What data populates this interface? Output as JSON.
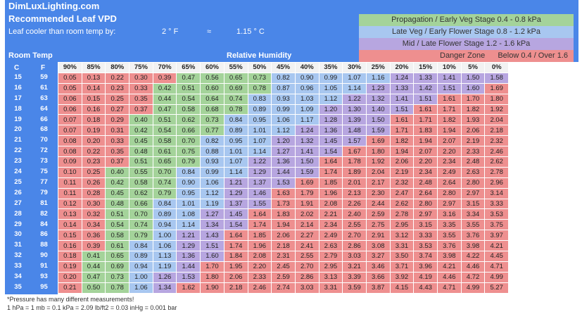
{
  "header": {
    "brand": "DimLuxLighting.com",
    "title": "Recommended Leaf VPD",
    "cooler_label": "Leaf cooler than room temp by:",
    "cooler_f": "2 ° F",
    "approx": "≈",
    "cooler_c": "1.15 ° C",
    "room_temp_label": "Room Temp",
    "rh_label": "Relative Humidity",
    "unit_c": "C",
    "unit_f": "F"
  },
  "legend": {
    "propagation": "Propagation / Early Veg Stage 0.4 - 0.8 kPa",
    "late_veg": "Late Veg / Early Flower Stage 0.8 - 1.2 kPa",
    "mid_late": "Mid / Late Flower Stage 1.2 - 1.6 kPa",
    "danger": "Danger Zone",
    "danger_range": "Below 0.4 / Over 1.6"
  },
  "colors": {
    "header": "#4a86e8",
    "red": "#ee8f8f",
    "green": "#a4d39a",
    "blue": "#a8c7f0",
    "purple": "#b7a6e0"
  },
  "humidity": [
    "90%",
    "85%",
    "80%",
    "75%",
    "70%",
    "65%",
    "60%",
    "55%",
    "50%",
    "45%",
    "40%",
    "35%",
    "30%",
    "25%",
    "20%",
    "15%",
    "10%",
    "5%",
    "0%"
  ],
  "temps": [
    {
      "c": "15",
      "f": "59",
      "v": [
        "0.05",
        "0.13",
        "0.22",
        "0.30",
        "0.39",
        "0.47",
        "0.56",
        "0.65",
        "0.73",
        "0.82",
        "0.90",
        "0.99",
        "1.07",
        "1.16",
        "1.24",
        "1.33",
        "1.41",
        "1.50",
        "1.58"
      ]
    },
    {
      "c": "16",
      "f": "61",
      "v": [
        "0.05",
        "0.14",
        "0.23",
        "0.33",
        "0.42",
        "0.51",
        "0.60",
        "0.69",
        "0.78",
        "0.87",
        "0.96",
        "1.05",
        "1.14",
        "1.23",
        "1.33",
        "1.42",
        "1.51",
        "1.60",
        "1.69"
      ]
    },
    {
      "c": "17",
      "f": "63",
      "v": [
        "0.06",
        "0.15",
        "0.25",
        "0.35",
        "0.44",
        "0.54",
        "0.64",
        "0.74",
        "0.83",
        "0.93",
        "1.03",
        "1.12",
        "1.22",
        "1.32",
        "1.41",
        "1.51",
        "1.61",
        "1.70",
        "1.80"
      ]
    },
    {
      "c": "18",
      "f": "64",
      "v": [
        "0.06",
        "0.16",
        "0.27",
        "0.37",
        "0.47",
        "0.58",
        "0.68",
        "0.78",
        "0.89",
        "0.99",
        "1.09",
        "1.20",
        "1.30",
        "1.40",
        "1.51",
        "1.61",
        "1.71",
        "1.82",
        "1.92"
      ]
    },
    {
      "c": "19",
      "f": "66",
      "v": [
        "0.07",
        "0.18",
        "0.29",
        "0.40",
        "0.51",
        "0.62",
        "0.73",
        "0.84",
        "0.95",
        "1.06",
        "1.17",
        "1.28",
        "1.39",
        "1.50",
        "1.61",
        "1.71",
        "1.82",
        "1.93",
        "2.04"
      ]
    },
    {
      "c": "20",
      "f": "68",
      "v": [
        "0.07",
        "0.19",
        "0.31",
        "0.42",
        "0.54",
        "0.66",
        "0.77",
        "0.89",
        "1.01",
        "1.12",
        "1.24",
        "1.36",
        "1.48",
        "1.59",
        "1.71",
        "1.83",
        "1.94",
        "2.06",
        "2.18"
      ]
    },
    {
      "c": "21",
      "f": "70",
      "v": [
        "0.08",
        "0.20",
        "0.33",
        "0.45",
        "0.58",
        "0.70",
        "0.82",
        "0.95",
        "1.07",
        "1.20",
        "1.32",
        "1.45",
        "1.57",
        "1.69",
        "1.82",
        "1.94",
        "2.07",
        "2.19",
        "2.32"
      ]
    },
    {
      "c": "22",
      "f": "72",
      "v": [
        "0.08",
        "0.22",
        "0.35",
        "0.48",
        "0.61",
        "0.75",
        "0.88",
        "1.01",
        "1.14",
        "1.27",
        "1.41",
        "1.54",
        "1.67",
        "1.80",
        "1.94",
        "2.07",
        "2.20",
        "2.33",
        "2.46"
      ]
    },
    {
      "c": "23",
      "f": "73",
      "v": [
        "0.09",
        "0.23",
        "0.37",
        "0.51",
        "0.65",
        "0.79",
        "0.93",
        "1.07",
        "1.22",
        "1.36",
        "1.50",
        "1.64",
        "1.78",
        "1.92",
        "2.06",
        "2.20",
        "2.34",
        "2.48",
        "2.62"
      ]
    },
    {
      "c": "24",
      "f": "75",
      "v": [
        "0.10",
        "0.25",
        "0.40",
        "0.55",
        "0.70",
        "0.84",
        "0.99",
        "1.14",
        "1.29",
        "1.44",
        "1.59",
        "1.74",
        "1.89",
        "2.04",
        "2.19",
        "2.34",
        "2.49",
        "2.63",
        "2.78"
      ]
    },
    {
      "c": "25",
      "f": "77",
      "v": [
        "0.11",
        "0.26",
        "0.42",
        "0.58",
        "0.74",
        "0.90",
        "1.06",
        "1.21",
        "1.37",
        "1.53",
        "1.69",
        "1.85",
        "2.01",
        "2.17",
        "2.32",
        "2.48",
        "2.64",
        "2.80",
        "2.96"
      ]
    },
    {
      "c": "26",
      "f": "79",
      "v": [
        "0.11",
        "0.28",
        "0.45",
        "0.62",
        "0.79",
        "0.95",
        "1.12",
        "1.29",
        "1.46",
        "1.63",
        "1.79",
        "1.96",
        "2.13",
        "2.30",
        "2.47",
        "2.64",
        "2.80",
        "2.97",
        "3.14"
      ]
    },
    {
      "c": "27",
      "f": "81",
      "v": [
        "0.12",
        "0.30",
        "0.48",
        "0.66",
        "0.84",
        "1.01",
        "1.19",
        "1.37",
        "1.55",
        "1.73",
        "1.91",
        "2.08",
        "2.26",
        "2.44",
        "2.62",
        "2.80",
        "2.97",
        "3.15",
        "3.33"
      ]
    },
    {
      "c": "28",
      "f": "82",
      "v": [
        "0.13",
        "0.32",
        "0.51",
        "0.70",
        "0.89",
        "1.08",
        "1.27",
        "1.45",
        "1.64",
        "1.83",
        "2.02",
        "2.21",
        "2.40",
        "2.59",
        "2.78",
        "2.97",
        "3.16",
        "3.34",
        "3.53"
      ]
    },
    {
      "c": "29",
      "f": "84",
      "v": [
        "0.14",
        "0.34",
        "0.54",
        "0.74",
        "0.94",
        "1.14",
        "1.34",
        "1.54",
        "1.74",
        "1.94",
        "2.14",
        "2.34",
        "2.55",
        "2.75",
        "2.95",
        "3.15",
        "3.35",
        "3.55",
        "3.75"
      ]
    },
    {
      "c": "30",
      "f": "86",
      "v": [
        "0.15",
        "0.36",
        "0.58",
        "0.79",
        "1.00",
        "1.21",
        "1.43",
        "1.64",
        "1.85",
        "2.06",
        "2.27",
        "2.49",
        "2.70",
        "2.91",
        "3.12",
        "3.33",
        "3.55",
        "3.76",
        "3.97"
      ]
    },
    {
      "c": "31",
      "f": "88",
      "v": [
        "0.16",
        "0.39",
        "0.61",
        "0.84",
        "1.06",
        "1.29",
        "1.51",
        "1.74",
        "1.96",
        "2.18",
        "2.41",
        "2.63",
        "2.86",
        "3.08",
        "3.31",
        "3.53",
        "3.76",
        "3.98",
        "4.21"
      ]
    },
    {
      "c": "32",
      "f": "90",
      "v": [
        "0.18",
        "0.41",
        "0.65",
        "0.89",
        "1.13",
        "1.36",
        "1.60",
        "1.84",
        "2.08",
        "2.31",
        "2.55",
        "2.79",
        "3.03",
        "3.27",
        "3.50",
        "3.74",
        "3.98",
        "4.22",
        "4.45"
      ]
    },
    {
      "c": "33",
      "f": "91",
      "v": [
        "0.19",
        "0.44",
        "0.69",
        "0.94",
        "1.19",
        "1.44",
        "1.70",
        "1.95",
        "2.20",
        "2.45",
        "2.70",
        "2.95",
        "3.21",
        "3.46",
        "3.71",
        "3.96",
        "4.21",
        "4.46",
        "4.71"
      ]
    },
    {
      "c": "34",
      "f": "93",
      "v": [
        "0.20",
        "0.47",
        "0.73",
        "1.00",
        "1.26",
        "1.53",
        "1.80",
        "2.06",
        "2.33",
        "2.59",
        "2.86",
        "3.13",
        "3.39",
        "3.66",
        "3.92",
        "4.19",
        "4.46",
        "4.72",
        "4.99"
      ]
    },
    {
      "c": "35",
      "f": "95",
      "v": [
        "0.21",
        "0.50",
        "0.78",
        "1.06",
        "1.34",
        "1.62",
        "1.90",
        "2.18",
        "2.46",
        "2.74",
        "3.03",
        "3.31",
        "3.59",
        "3.87",
        "4.15",
        "4.43",
        "4.71",
        "4.99",
        "5.27"
      ]
    }
  ],
  "footer": {
    "note1": "*Pressure has many different measurements!",
    "note2": "1 hPa = 1 mb = 0.1 kPa = 2.09 lb/ft2 = 0.03 inHg = 0.001 bar"
  }
}
